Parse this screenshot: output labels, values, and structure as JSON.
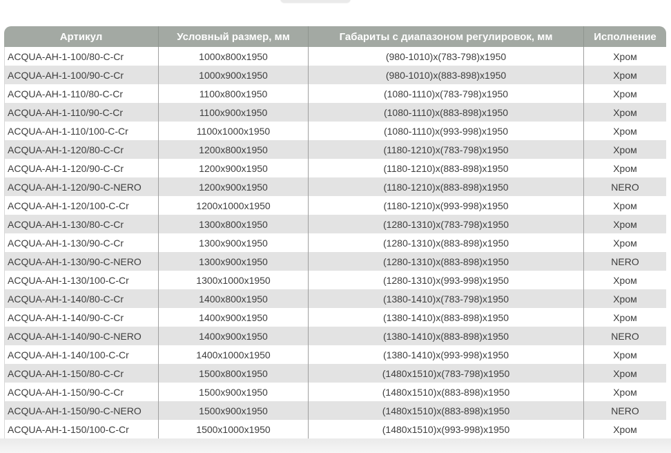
{
  "colors": {
    "header_bg": "#a3a9a3",
    "header_text": "#ffffff",
    "stripe_bg": "#e3e3e3",
    "row_bg": "#ffffff",
    "body_text": "#3d3d3d",
    "separator": "#9f9f9f",
    "header_separator": "#8f958f",
    "table_bottom_border": "#a9a9a9",
    "footer_bg": "#f0f0f0"
  },
  "table": {
    "columns": [
      {
        "id": "article",
        "label": "Артикул"
      },
      {
        "id": "size",
        "label": "Условный размер, мм"
      },
      {
        "id": "dimensions",
        "label": "Габариты с диапазоном регулировок, мм"
      },
      {
        "id": "finish",
        "label": "Исполнение"
      }
    ],
    "rows": [
      {
        "article": "ACQUA-AH-1-100/80-C-Cr",
        "size": "1000x800x1950",
        "dimensions": "(980-1010)x(783-798)x1950",
        "finish": "Хром"
      },
      {
        "article": "ACQUA-AH-1-100/90-C-Cr",
        "size": "1000x900x1950",
        "dimensions": "(980-1010)x(883-898)x1950",
        "finish": "Хром"
      },
      {
        "article": "ACQUA-AH-1-110/80-C-Cr",
        "size": "1100x800x1950",
        "dimensions": "(1080-1110)x(783-798)x1950",
        "finish": "Хром"
      },
      {
        "article": "ACQUA-AH-1-110/90-C-Cr",
        "size": "1100x900x1950",
        "dimensions": "(1080-1110)x(883-898)x1950",
        "finish": "Хром"
      },
      {
        "article": "ACQUA-AH-1-110/100-C-Cr",
        "size": "1100x1000x1950",
        "dimensions": "(1080-1110)x(993-998)x1950",
        "finish": "Хром"
      },
      {
        "article": "ACQUA-AH-1-120/80-C-Cr",
        "size": "1200x800x1950",
        "dimensions": "(1180-1210)x(783-798)x1950",
        "finish": "Хром"
      },
      {
        "article": "ACQUA-AH-1-120/90-C-Cr",
        "size": "1200x900x1950",
        "dimensions": "(1180-1210)x(883-898)x1950",
        "finish": "Хром"
      },
      {
        "article": "ACQUA-AH-1-120/90-C-NERO",
        "size": "1200x900x1950",
        "dimensions": "(1180-1210)x(883-898)x1950",
        "finish": "NERO"
      },
      {
        "article": "ACQUA-AH-1-120/100-C-Cr",
        "size": "1200x1000x1950",
        "dimensions": "(1180-1210)x(993-998)x1950",
        "finish": "Хром"
      },
      {
        "article": "ACQUA-AH-1-130/80-C-Cr",
        "size": "1300x800x1950",
        "dimensions": "(1280-1310)x(783-798)x1950",
        "finish": "Хром"
      },
      {
        "article": "ACQUA-AH-1-130/90-C-Cr",
        "size": "1300x900x1950",
        "dimensions": "(1280-1310)x(883-898)x1950",
        "finish": "Хром"
      },
      {
        "article": "ACQUA-AH-1-130/90-C-NERO",
        "size": "1300x900x1950",
        "dimensions": "(1280-1310)x(883-898)x1950",
        "finish": "NERO"
      },
      {
        "article": "ACQUA-AH-1-130/100-C-Cr",
        "size": "1300x1000x1950",
        "dimensions": "(1280-1310)x(993-998)x1950",
        "finish": "Хром"
      },
      {
        "article": "ACQUA-AH-1-140/80-C-Cr",
        "size": "1400x800x1950",
        "dimensions": "(1380-1410)x(783-798)x1950",
        "finish": "Хром"
      },
      {
        "article": "ACQUA-AH-1-140/90-C-Cr",
        "size": "1400x900x1950",
        "dimensions": "(1380-1410)x(883-898)x1950",
        "finish": "Хром"
      },
      {
        "article": "ACQUA-AH-1-140/90-C-NERO",
        "size": "1400x900x1950",
        "dimensions": "(1380-1410)x(883-898)x1950",
        "finish": "NERO"
      },
      {
        "article": "ACQUA-AH-1-140/100-C-Cr",
        "size": "1400x1000x1950",
        "dimensions": "(1380-1410)x(993-998)x1950",
        "finish": "Хром"
      },
      {
        "article": "ACQUA-AH-1-150/80-C-Cr",
        "size": "1500x800x1950",
        "dimensions": "(1480x1510)x(783-798)x1950",
        "finish": "Хром"
      },
      {
        "article": "ACQUA-AH-1-150/90-C-Cr",
        "size": "1500x900x1950",
        "dimensions": "(1480x1510)x(883-898)x1950",
        "finish": "Хром"
      },
      {
        "article": "ACQUA-AH-1-150/90-C-NERO",
        "size": "1500x900x1950",
        "dimensions": "(1480x1510)x(883-898)x1950",
        "finish": "NERO"
      },
      {
        "article": "ACQUA-AH-1-150/100-C-Cr",
        "size": "1500x1000x1950",
        "dimensions": "(1480x1510)x(993-998)x1950",
        "finish": "Хром"
      }
    ]
  }
}
